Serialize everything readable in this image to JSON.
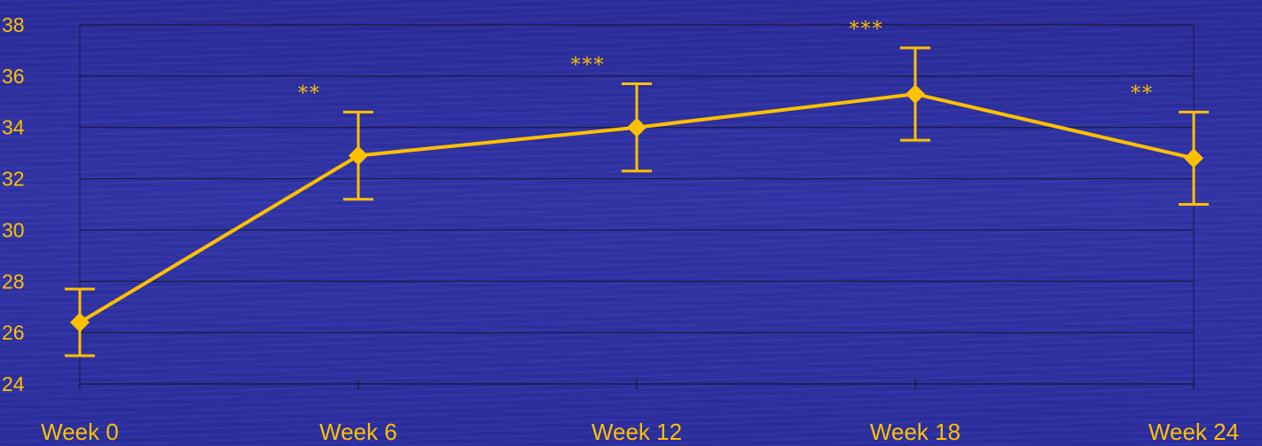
{
  "chart_data": {
    "type": "line",
    "title": "",
    "xlabel": "",
    "ylabel": "",
    "categories": [
      "Week 0",
      "Week 6",
      "Week 12",
      "Week 18",
      "Week 24"
    ],
    "series": [
      {
        "values": [
          26.4,
          32.9,
          34.0,
          35.3,
          32.8
        ],
        "error": [
          1.3,
          1.7,
          1.7,
          1.8,
          1.8
        ],
        "significance": [
          "",
          "**",
          "***",
          "***",
          "**"
        ]
      }
    ],
    "ylim": [
      24,
      38
    ],
    "yticks": [
      "24",
      "26",
      "28",
      "30",
      "32",
      "34",
      "36",
      "38"
    ],
    "grid": true,
    "legend": "none",
    "colors": {
      "series": "#ffc000",
      "grid": "#1a1a40",
      "background": "#2e31a2"
    }
  }
}
